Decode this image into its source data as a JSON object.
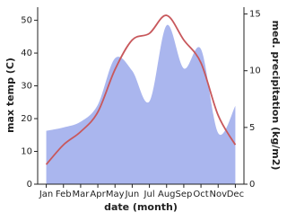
{
  "chart_data": {
    "type": "line-area",
    "x_label": "date (month)",
    "categories": [
      "Jan",
      "Feb",
      "Mar",
      "Apr",
      "May",
      "Jun",
      "Jul",
      "Aug",
      "Sep",
      "Oct",
      "Nov",
      "Dec"
    ],
    "series": [
      {
        "name": "max temp (C)",
        "color": "#c8585c",
        "values": [
          6,
          12,
          16,
          22,
          35,
          44,
          46,
          51.5,
          44,
          37,
          21,
          12
        ]
      },
      {
        "name": "med. precipitation (kg/m2)",
        "color": "#aab6ee",
        "axis": "y2",
        "values": [
          4.7,
          5.0,
          5.5,
          7,
          11.1,
          10,
          7.3,
          14,
          10.2,
          11.9,
          4.5,
          6.9
        ]
      }
    ],
    "ylim": [
      0,
      54
    ],
    "yticks": [
      0,
      10,
      20,
      30,
      40,
      50
    ],
    "y2lim": [
      0,
      15.6
    ],
    "y2ticks": [
      0,
      5,
      10,
      15
    ]
  }
}
